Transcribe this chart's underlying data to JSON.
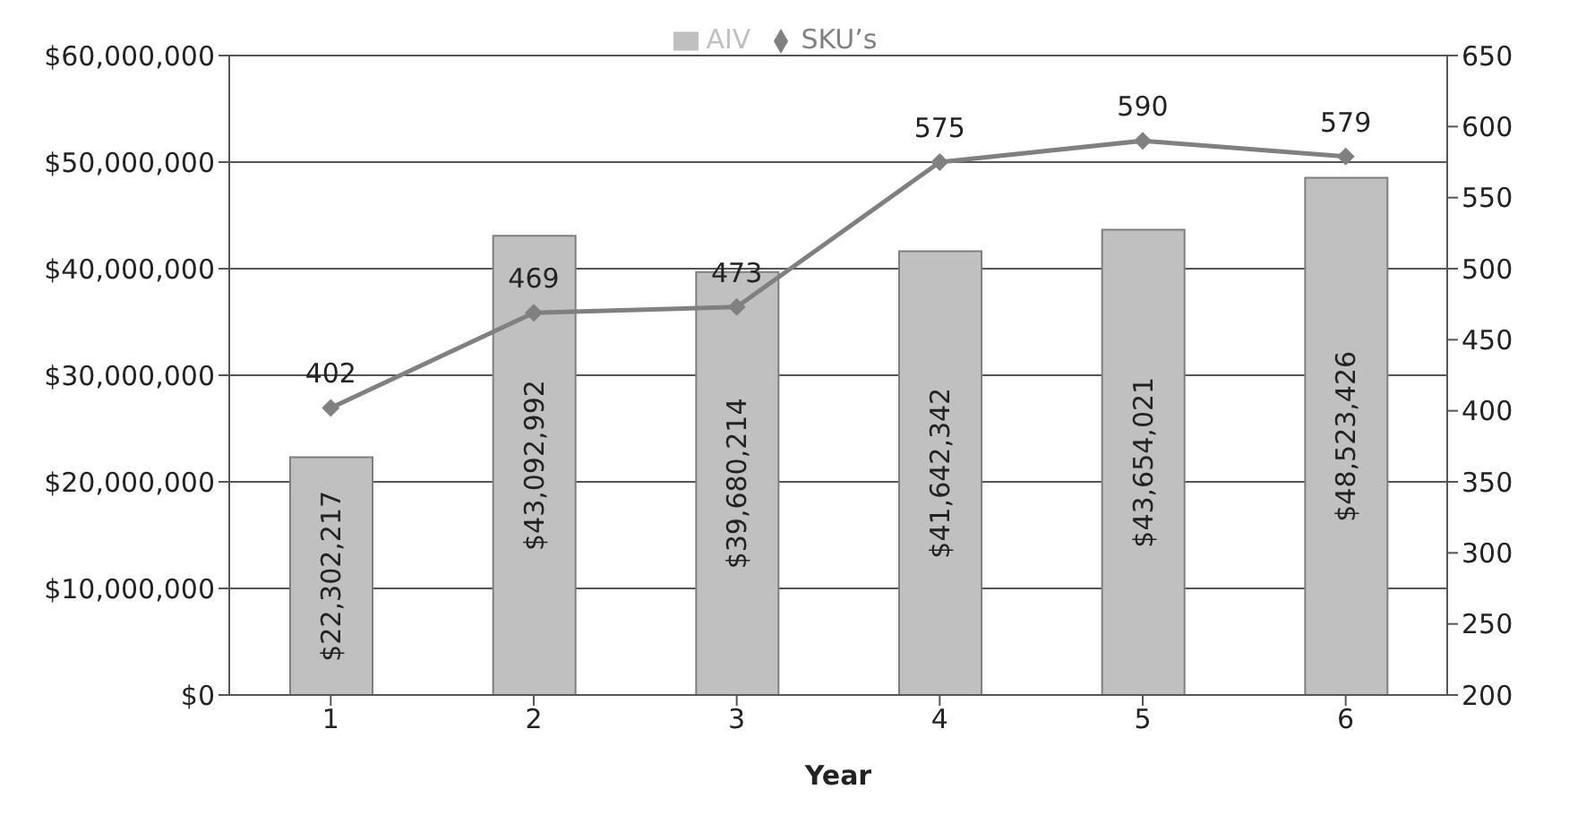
{
  "chart_data": {
    "type": "bar",
    "xlabel": "Year",
    "categories": [
      "1",
      "2",
      "3",
      "4",
      "5",
      "6"
    ],
    "series": [
      {
        "name": "AIV",
        "color": "#c0c0c0",
        "values": [
          22302217,
          43092992,
          39680214,
          41642342,
          43654021,
          48523426
        ],
        "value_labels": [
          "$22,302,217",
          "$43,092,992",
          "$39,680,214",
          "$41,642,342",
          "$43,654,021",
          "$48,523,426"
        ]
      },
      {
        "name": "SKU’s",
        "type": "line",
        "axis": "y2",
        "color": "#808080",
        "marker": "diamond",
        "values": [
          402,
          469,
          473,
          575,
          590,
          579
        ],
        "value_labels": [
          "402",
          "469",
          "473",
          "575",
          "590",
          "579"
        ]
      }
    ],
    "ylim": [
      0,
      60000000
    ],
    "yticks": [
      {
        "value": 0,
        "label": "$0"
      },
      {
        "value": 10000000,
        "label": "$10,000,000"
      },
      {
        "value": 20000000,
        "label": "$20,000,000"
      },
      {
        "value": 30000000,
        "label": "$30,000,000"
      },
      {
        "value": 40000000,
        "label": "$40,000,000"
      },
      {
        "value": 50000000,
        "label": "$50,000,000"
      },
      {
        "value": 60000000,
        "label": "$60,000,000"
      }
    ],
    "y2lim": [
      200,
      650
    ],
    "y2ticks": [
      200,
      250,
      300,
      350,
      400,
      450,
      500,
      550,
      600,
      650
    ],
    "grid": "y",
    "legend": "top"
  }
}
